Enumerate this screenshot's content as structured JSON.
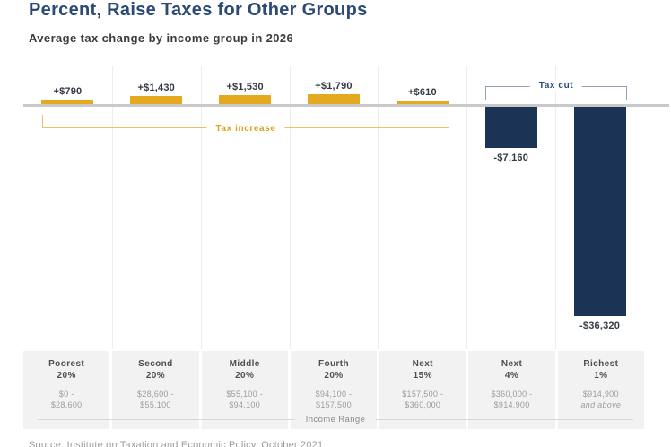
{
  "header": {
    "title": "Percent, Raise Taxes for Other Groups",
    "subtitle": "Average tax change by income group in 2026"
  },
  "annotations": {
    "tax_increase_label": "Tax increase",
    "tax_cut_label": "Tax cut"
  },
  "footer": {
    "source": "Source: Institute on Taxation and Economic Policy, October 2021"
  },
  "colors": {
    "title_navy": "#2C4A75",
    "positive_bar_gold": "#E5A91F",
    "negative_bar_navy": "#1B3456",
    "axis_gray": "#C9C9C9",
    "strip_gray": "#F2F2F2"
  },
  "chart_data": {
    "type": "bar",
    "title": "Percent, Raise Taxes for Other Groups",
    "subtitle": "Average tax change by income group in 2026",
    "xlabel": "Income Range",
    "categories": [
      "Poorest 20%",
      "Second 20%",
      "Middle 20%",
      "Fourth 20%",
      "Next 15%",
      "Next 4%",
      "Richest 1%"
    ],
    "income_ranges": [
      "$0 - $28,600",
      "$28,600 - $55,100",
      "$55,100 - $94,100",
      "$94,100 - $157,500",
      "$157,500 - $360,000",
      "$360,000 - $914,900",
      "$914,900 and above"
    ],
    "values": [
      790,
      1430,
      1530,
      1790,
      610,
      -7160,
      -36320
    ],
    "value_labels": [
      "+$790",
      "+$1,430",
      "+$1,530",
      "+$1,790",
      "+$610",
      "-$7,160",
      "-$36,320"
    ],
    "positive_color": "#E5A91F",
    "negative_color": "#1B3456",
    "annotations": [
      "Tax increase",
      "Tax cut"
    ],
    "grid": "faint vertical column separators",
    "baseline": 0
  }
}
